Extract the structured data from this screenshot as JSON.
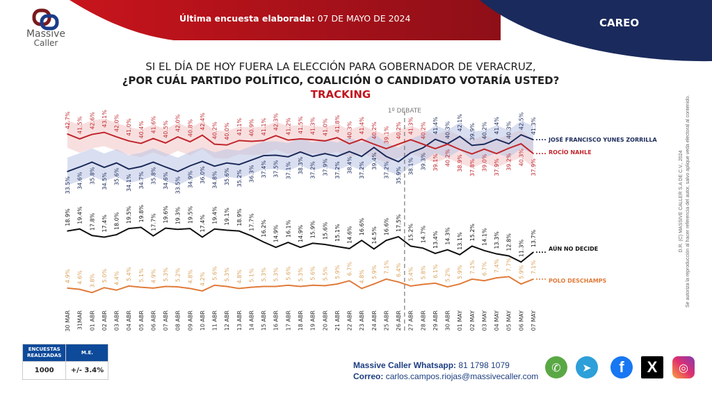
{
  "header": {
    "last_survey_label": "Última encuesta elaborada:",
    "last_survey_date": "07 DE MAYO DE 2024",
    "section": "CAREO"
  },
  "logo": {
    "line1": "Massive",
    "line2": "Caller"
  },
  "title": {
    "line1": "SI EL DÍA DE HOY FUERA LA ELECCIÓN PARA GOBERNADOR DE VERACRUZ,",
    "line2": "¿POR CUÁL PARTIDO POLÍTICO, COALICIÓN O CANDIDATO  VOTARÍA USTED?",
    "line3": "TRACKING"
  },
  "chart_data": {
    "type": "line",
    "categories": [
      "30 MAR",
      "31MAR",
      "01 ABR",
      "02 ABR",
      "03 ABR",
      "04 ABR",
      "05 ABR",
      "06 ABR",
      "07 ABR",
      "08 ABR",
      "09 ABR",
      "10 ABR",
      "11 ABR",
      "12 ABR",
      "13 ABR",
      "14 ABR",
      "15 ABR",
      "16 ABR",
      "17 ABR",
      "18 ABR",
      "19 ABR",
      "20 ABR",
      "21 ABR",
      "22 ABR",
      "23 ABR",
      "24 ABR",
      "25 ABR",
      "26 ABR",
      "27 ABR",
      "28 ABR",
      "29 ABR",
      "30 ABR",
      "01 MAY",
      "02 MAY",
      "03 MAY",
      "04 MAY",
      "05 MAY",
      "06 MAY",
      "07 MAY"
    ],
    "annotation": "1º DEBATE",
    "annotation_between": [
      "26 ABR",
      "27 ABR"
    ],
    "margin_of_error": 3.4,
    "unit": "%",
    "series": [
      {
        "name": "JOSÉ FRANCISCO YUNES ZORRILLA",
        "color": "#1b2a5a",
        "band_color": "#b9c4e4",
        "values": [
          33.5,
          34.6,
          35.8,
          34.5,
          35.6,
          34.1,
          34.7,
          35.8,
          34.6,
          33.5,
          34.9,
          36.0,
          34.8,
          35.6,
          35.2,
          36.3,
          37.4,
          37.5,
          37.1,
          38.3,
          37.2,
          37.9,
          37.2,
          38.4,
          37.2,
          39.4,
          37.2,
          35.9,
          38.1,
          39.3,
          41.4,
          40.3,
          42.1,
          39.9,
          40.2,
          41.4,
          40.3,
          42.5,
          41.3
        ]
      },
      {
        "name": "ROCÍO NAHLE",
        "color": "#c0262c",
        "band_color": "#f2c4c4",
        "values": [
          42.7,
          41.5,
          42.6,
          43.1,
          42.0,
          41.0,
          40.4,
          41.6,
          40.5,
          42.0,
          40.8,
          42.4,
          40.2,
          40.0,
          41.1,
          40.9,
          41.1,
          42.3,
          41.2,
          41.5,
          41.3,
          41.0,
          41.8,
          40.3,
          41.4,
          40.2,
          39.1,
          40.2,
          41.3,
          40.2,
          39.1,
          40.2,
          38.9,
          37.8,
          39.0,
          37.9,
          39.2,
          40.3,
          37.9
        ]
      },
      {
        "name": "AÚN NO DECIDE",
        "color": "#111111",
        "values": [
          18.9,
          19.4,
          17.8,
          17.4,
          18.0,
          19.5,
          19.8,
          17.7,
          19.6,
          19.3,
          19.5,
          17.4,
          19.4,
          19.1,
          18.9,
          17.7,
          16.2,
          14.9,
          16.1,
          14.9,
          15.9,
          15.6,
          15.1,
          14.6,
          16.6,
          14.5,
          16.6,
          17.5,
          15.2,
          14.7,
          13.4,
          14.3,
          13.1,
          15.2,
          14.1,
          13.3,
          12.8,
          11.3,
          13.7
        ]
      },
      {
        "name": "POLO DESCHAMPS",
        "color": "#e07b39",
        "label_color": "#d9a15a",
        "values": [
          4.9,
          4.6,
          3.8,
          5.0,
          4.4,
          5.4,
          5.1,
          4.9,
          5.3,
          5.2,
          4.8,
          4.2,
          5.6,
          5.3,
          4.8,
          5.1,
          5.3,
          5.3,
          5.6,
          5.3,
          5.6,
          5.5,
          5.9,
          6.7,
          4.8,
          5.9,
          7.1,
          6.4,
          5.4,
          5.8,
          6.1,
          5.2,
          5.9,
          7.1,
          6.7,
          7.4,
          7.7,
          5.9,
          7.1
        ]
      }
    ]
  },
  "sample_table": {
    "col1": "ENCUESTAS REALIZADAS",
    "col2": "M.E.",
    "surveys": "1000",
    "margin": "+/- 3.4%"
  },
  "contact": {
    "whatsapp_label": "Massive Caller Whatsapp:",
    "whatsapp": "81 1798  1079",
    "email_label": "Correo:",
    "email": "carlos.campos.riojas@massivecaller.com"
  },
  "social": [
    "whatsapp-icon",
    "telegram-icon",
    "facebook-icon",
    "x-icon",
    "instagram-icon"
  ],
  "copyright": {
    "line1": "D.R. (C) MASSIVE CALLER S.A DE C.V., 2024",
    "line2": "Se autoriza la reproducción al hacer referencia del autor, salvo aplique veda electoral al contenido."
  }
}
